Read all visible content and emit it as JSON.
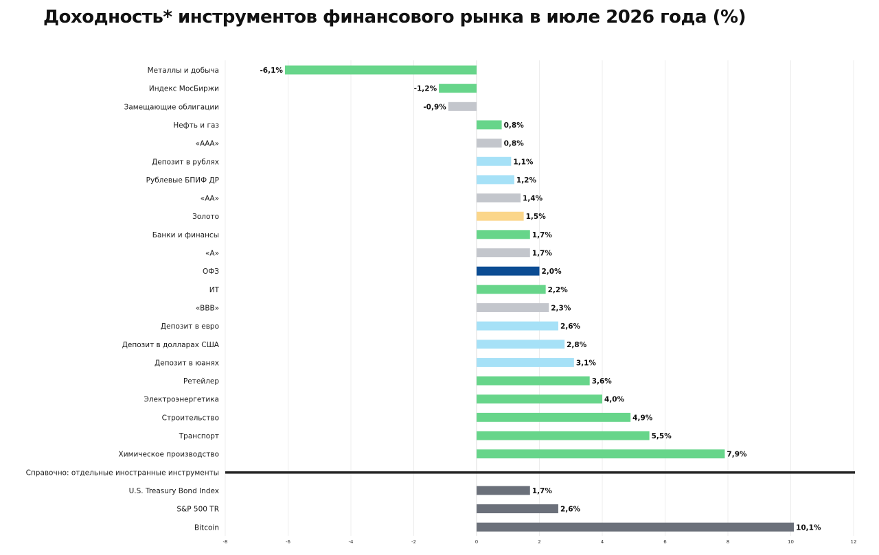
{
  "chart_data": {
    "type": "bar",
    "orientation": "horizontal",
    "title": "Доходность* инструментов финансового рынка в июле 2026 года (%)",
    "xlim": [
      -8,
      12
    ],
    "xticks": [
      "-8",
      "-6",
      "-4",
      "-2",
      "0",
      "2",
      "4",
      "6",
      "8",
      "10",
      "12"
    ],
    "grid": true,
    "legend": "none",
    "separator_after_index": 21,
    "bars": [
      {
        "category": "Металлы и добыча",
        "value": -6.1,
        "label": "-6,1%",
        "color": "#67d58a"
      },
      {
        "category": "Индекс МосБиржи",
        "value": -1.2,
        "label": "-1,2%",
        "color": "#67d58a"
      },
      {
        "category": "Замещающие облигации",
        "value": -0.9,
        "label": "-0,9%",
        "color": "#c3c6cc"
      },
      {
        "category": "Нефть и газ",
        "value": 0.8,
        "label": "0,8%",
        "color": "#67d58a"
      },
      {
        "category": "«ААА»",
        "value": 0.8,
        "label": "0,8%",
        "color": "#c3c6cc"
      },
      {
        "category": "Депозит в рублях",
        "value": 1.1,
        "label": "1,1%",
        "color": "#a6e1f7"
      },
      {
        "category": "Рублевые БПИФ ДР",
        "value": 1.2,
        "label": "1,2%",
        "color": "#a6e1f7"
      },
      {
        "category": "«АА»",
        "value": 1.4,
        "label": "1,4%",
        "color": "#c3c6cc"
      },
      {
        "category": "Золото",
        "value": 1.5,
        "label": "1,5%",
        "color": "#fbd68a"
      },
      {
        "category": "Банки и финансы",
        "value": 1.7,
        "label": "1,7%",
        "color": "#67d58a"
      },
      {
        "category": "«А»",
        "value": 1.7,
        "label": "1,7%",
        "color": "#c3c6cc"
      },
      {
        "category": "ОФЗ",
        "value": 2.0,
        "label": "2,0%",
        "color": "#0b4c93"
      },
      {
        "category": "ИТ",
        "value": 2.2,
        "label": "2,2%",
        "color": "#67d58a"
      },
      {
        "category": "«BBB»",
        "value": 2.3,
        "label": "2,3%",
        "color": "#c3c6cc"
      },
      {
        "category": "Депозит в евро",
        "value": 2.6,
        "label": "2,6%",
        "color": "#a6e1f7"
      },
      {
        "category": "Депозит в долларах США",
        "value": 2.8,
        "label": "2,8%",
        "color": "#a6e1f7"
      },
      {
        "category": "Депозит в юанях",
        "value": 3.1,
        "label": "3,1%",
        "color": "#a6e1f7"
      },
      {
        "category": "Ретейлер",
        "value": 3.6,
        "label": "3,6%",
        "color": "#67d58a"
      },
      {
        "category": "Электроэнергетика",
        "value": 4.0,
        "label": "4,0%",
        "color": "#67d58a"
      },
      {
        "category": "Строительство",
        "value": 4.9,
        "label": "4,9%",
        "color": "#67d58a"
      },
      {
        "category": "Транспорт",
        "value": 5.5,
        "label": "5,5%",
        "color": "#67d58a"
      },
      {
        "category": "Химическое производство",
        "value": 7.9,
        "label": "7,9%",
        "color": "#67d58a"
      },
      {
        "category": "Справочно: отдельные иностранные инструменты",
        "value": null,
        "label": "",
        "color": "#222222"
      },
      {
        "category": "U.S. Treasury Bond Index",
        "value": 1.7,
        "label": "1,7%",
        "color": "#6b707a"
      },
      {
        "category": "S&P 500 TR",
        "value": 2.6,
        "label": "2,6%",
        "color": "#6b707a"
      },
      {
        "category": "Bitcoin",
        "value": 10.1,
        "label": "10,1%",
        "color": "#6b707a"
      }
    ]
  }
}
